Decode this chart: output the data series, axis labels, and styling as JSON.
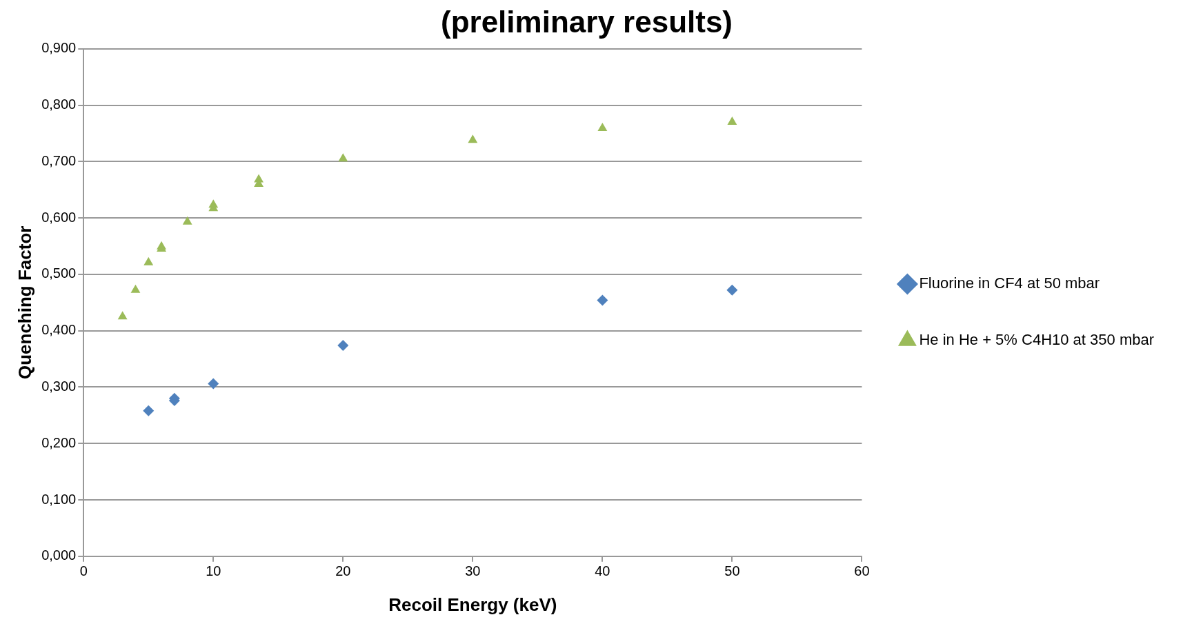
{
  "chart_data": {
    "type": "scatter",
    "title": "(preliminary results)",
    "xlabel": "Recoil Energy (keV)",
    "ylabel": "Quenching Factor",
    "series": [
      {
        "name": "Fluorine in CF4 at 50 mbar",
        "color": "#4f81bd",
        "marker": "diamond",
        "x": [
          5,
          7,
          7,
          10,
          20,
          40,
          50
        ],
        "values": [
          0.258,
          0.28,
          0.276,
          0.306,
          0.374,
          0.454,
          0.472
        ]
      },
      {
        "name": "He in He + 5% C4H10 at 350 mbar",
        "color": "#9bbb59",
        "marker": "triangle",
        "x": [
          3,
          4,
          5,
          6,
          6,
          8,
          10,
          10,
          13.5,
          13.5,
          20,
          30,
          40,
          50
        ],
        "values": [
          0.425,
          0.472,
          0.521,
          0.549,
          0.545,
          0.593,
          0.623,
          0.617,
          0.668,
          0.66,
          0.705,
          0.738,
          0.759,
          0.77
        ]
      }
    ],
    "xlim": [
      0,
      60
    ],
    "xticks": [
      0,
      10,
      20,
      30,
      40,
      50,
      60
    ],
    "ylim": [
      0,
      0.9
    ],
    "yticks": [
      {
        "value": 0,
        "label": "0,000"
      },
      {
        "value": 0.1,
        "label": "0,100"
      },
      {
        "value": 0.2,
        "label": "0,200"
      },
      {
        "value": 0.3,
        "label": "0,300"
      },
      {
        "value": 0.4,
        "label": "0,400"
      },
      {
        "value": 0.5,
        "label": "0,500"
      },
      {
        "value": 0.6,
        "label": "0,600"
      },
      {
        "value": 0.7,
        "label": "0,700"
      },
      {
        "value": 0.8,
        "label": "0,800"
      },
      {
        "value": 0.9,
        "label": "0,900"
      }
    ],
    "grid": "y",
    "legend": "right"
  }
}
